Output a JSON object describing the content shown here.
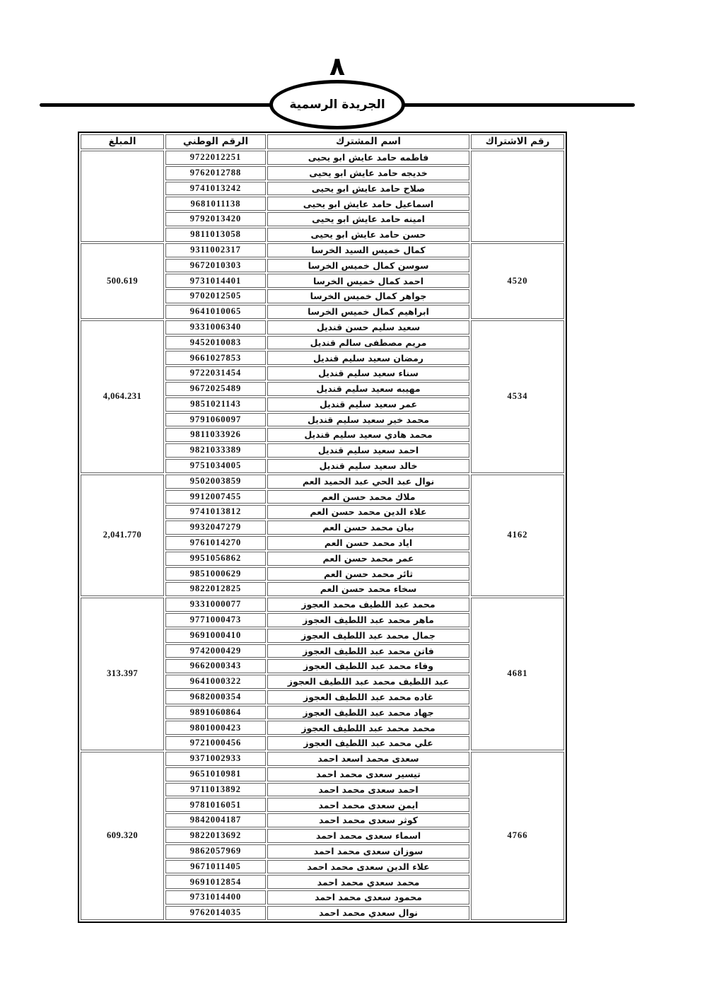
{
  "header": {
    "page_number": "٨",
    "banner_title": "الجريدة الرسمية"
  },
  "colors": {
    "ink": "#000000",
    "cell_border": "#636363",
    "background": "#ffffff"
  },
  "table": {
    "headers": {
      "subscription_number": "رقم الاشتراك",
      "subscriber_name": "اسم المشترك",
      "national_number": "الرقم الوطني",
      "amount": "المبلغ"
    },
    "groups": [
      {
        "subscription_number": "",
        "amount": "",
        "members": [
          {
            "name": "فاطمه حامد عايش ابو يحيى",
            "national_number": "9722012251"
          },
          {
            "name": "خديجه حامد عايش ابو يحيى",
            "national_number": "9762012788"
          },
          {
            "name": "صلاح حامد عايش ابو يحيى",
            "national_number": "9741013242"
          },
          {
            "name": "اسماعيل حامد عايش ابو يحيى",
            "national_number": "9681011138"
          },
          {
            "name": "امينه حامد عايش ابو يحيى",
            "national_number": "9792013420"
          },
          {
            "name": "حسن حامد عايش ابو يحيى",
            "national_number": "9811013058"
          }
        ]
      },
      {
        "subscription_number": "4520",
        "amount": "500.619",
        "members": [
          {
            "name": "كمال خميس السيد الخرسا",
            "national_number": "9311002317"
          },
          {
            "name": "سوسن كمال خميس الخرسا",
            "national_number": "9672010303"
          },
          {
            "name": "احمد كمال خميس الخرسا",
            "national_number": "9731014401"
          },
          {
            "name": "جواهر كمال خميس الخرسا",
            "national_number": "9702012505"
          },
          {
            "name": "ابراهيم كمال خميس الخرسا",
            "national_number": "9641010065"
          }
        ]
      },
      {
        "subscription_number": "4534",
        "amount": "4,064.231",
        "members": [
          {
            "name": "سعيد سليم حسن قنديل",
            "national_number": "9331006340"
          },
          {
            "name": "مريم مصطفى سالم قنديل",
            "national_number": "9452010083"
          },
          {
            "name": "رمضان سعيد سليم قنديل",
            "national_number": "9661027853"
          },
          {
            "name": "سناء سعيد سليم قنديل",
            "national_number": "9722031454"
          },
          {
            "name": "مهيبه سعيد سليم قنديل",
            "national_number": "9672025489"
          },
          {
            "name": "عمر سعيد سليم قنديل",
            "national_number": "9851021143"
          },
          {
            "name": "محمد خير سعيد سليم قنديل",
            "national_number": "9791060097"
          },
          {
            "name": "محمد هادي سعيد سليم قنديل",
            "national_number": "9811033926"
          },
          {
            "name": "احمد سعيد سليم قنديل",
            "national_number": "9821033389"
          },
          {
            "name": "خالد سعيد سليم قنديل",
            "national_number": "9751034005"
          }
        ]
      },
      {
        "subscription_number": "4162",
        "amount": "2,041.770",
        "members": [
          {
            "name": "نوال عبد الحي عبد الحميد العم",
            "national_number": "9502003859"
          },
          {
            "name": "ملاك محمد حسن العم",
            "national_number": "9912007455"
          },
          {
            "name": "علاء الدين محمد حسن العم",
            "national_number": "9741013812"
          },
          {
            "name": "بيان محمد حسن العم",
            "national_number": "9932047279"
          },
          {
            "name": "اياد محمد حسن العم",
            "national_number": "9761014270"
          },
          {
            "name": "عمر محمد حسن العم",
            "national_number": "9951056862"
          },
          {
            "name": "ثائر محمد حسن العم",
            "national_number": "9851000629"
          },
          {
            "name": "سخاء محمد حسن العم",
            "national_number": "9822012825"
          }
        ]
      },
      {
        "subscription_number": "4681",
        "amount": "313.397",
        "members": [
          {
            "name": "محمد عبد اللطيف محمد العجوز",
            "national_number": "9331000077"
          },
          {
            "name": "ماهر محمد عبد اللطيف العجوز",
            "national_number": "9771000473"
          },
          {
            "name": "جمال محمد عبد اللطيف العجوز",
            "national_number": "9691000410"
          },
          {
            "name": "فاتن محمد عبد اللطيف العجوز",
            "national_number": "9742000429"
          },
          {
            "name": "وفاء محمد عبد اللطيف العجوز",
            "national_number": "9662000343"
          },
          {
            "name": "عبد اللطيف محمد عبد اللطيف العجوز",
            "national_number": "9641000322"
          },
          {
            "name": "غاده محمد عبد اللطيف العجوز",
            "national_number": "9682000354"
          },
          {
            "name": "جهاد محمد عبد اللطيف العجوز",
            "national_number": "9891060864"
          },
          {
            "name": "محمد محمد عبد اللطيف العجوز",
            "national_number": "9801000423"
          },
          {
            "name": "علي محمد عبد اللطيف العجوز",
            "national_number": "9721000456"
          }
        ]
      },
      {
        "subscription_number": "4766",
        "amount": "609.320",
        "members": [
          {
            "name": "سعدى محمد اسعد احمد",
            "national_number": "9371002933"
          },
          {
            "name": "تيسير سعدى محمد احمد",
            "national_number": "9651010981"
          },
          {
            "name": "احمد سعدى محمد احمد",
            "national_number": "9711013892"
          },
          {
            "name": "ايمن سعدى محمد احمد",
            "national_number": "9781016051"
          },
          {
            "name": "كوثر سعدى محمد احمد",
            "national_number": "9842004187"
          },
          {
            "name": "اسماء سعدى محمد احمد",
            "national_number": "9822013692"
          },
          {
            "name": "سوزان سعدى محمد احمد",
            "national_number": "9862057969"
          },
          {
            "name": "علاء الدين سعدى محمد احمد",
            "national_number": "9671011405"
          },
          {
            "name": "محمد سعدي محمد احمد",
            "national_number": "9691012854"
          },
          {
            "name": "محمود سعدى محمد احمد",
            "national_number": "9731014400"
          },
          {
            "name": "نوال سعدي محمد احمد",
            "national_number": "9762014035"
          }
        ]
      }
    ]
  }
}
